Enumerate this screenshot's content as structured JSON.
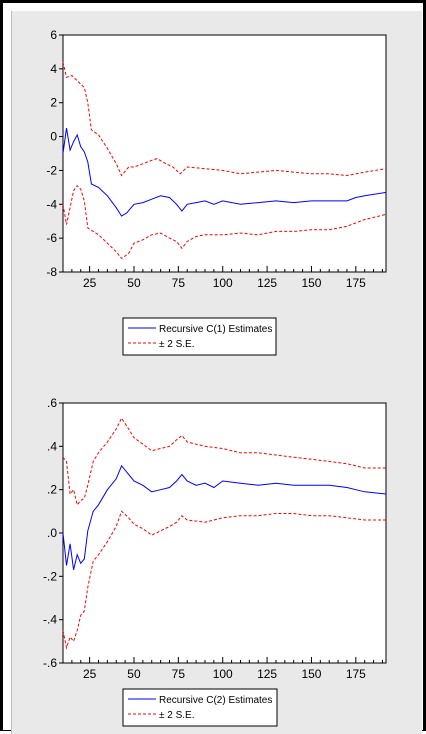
{
  "colors": {
    "estimate": "#0000ff",
    "se_band": "#ff0000",
    "panel_background": "#e9e9e9",
    "plot_background": "#ffffff"
  },
  "chart_data": [
    {
      "type": "line",
      "xlim": [
        10,
        192
      ],
      "ylim": [
        -8,
        6
      ],
      "x_ticks": [
        25,
        50,
        75,
        100,
        125,
        150,
        175
      ],
      "y_ticks": [
        -8,
        -6,
        -4,
        -2,
        0,
        2,
        4,
        6
      ],
      "y_tick_labels": [
        "-8",
        "-6",
        "-4",
        "-2",
        "0",
        "2",
        "4",
        "6"
      ],
      "grid": false,
      "legend_position": "bottom-center",
      "series": [
        {
          "name": "Recursive C(1) Estimates",
          "style": "solid",
          "color": "#0000ff",
          "points": [
            [
              10,
              -1.0
            ],
            [
              12,
              0.5
            ],
            [
              14,
              -0.8
            ],
            [
              16,
              -0.3
            ],
            [
              18,
              0.1
            ],
            [
              20,
              -0.6
            ],
            [
              22,
              -0.9
            ],
            [
              24,
              -1.5
            ],
            [
              26,
              -2.8
            ],
            [
              30,
              -3.0
            ],
            [
              35,
              -3.5
            ],
            [
              40,
              -4.2
            ],
            [
              43,
              -4.7
            ],
            [
              46,
              -4.5
            ],
            [
              50,
              -4.0
            ],
            [
              55,
              -3.9
            ],
            [
              60,
              -3.7
            ],
            [
              65,
              -3.5
            ],
            [
              70,
              -3.6
            ],
            [
              74,
              -4.0
            ],
            [
              77,
              -4.4
            ],
            [
              80,
              -4.0
            ],
            [
              85,
              -3.9
            ],
            [
              90,
              -3.8
            ],
            [
              95,
              -4.0
            ],
            [
              100,
              -3.8
            ],
            [
              110,
              -4.0
            ],
            [
              120,
              -3.9
            ],
            [
              130,
              -3.8
            ],
            [
              140,
              -3.9
            ],
            [
              150,
              -3.8
            ],
            [
              160,
              -3.8
            ],
            [
              170,
              -3.8
            ],
            [
              175,
              -3.6
            ],
            [
              180,
              -3.5
            ],
            [
              192,
              -3.3
            ]
          ]
        },
        {
          "name": "± 2 S.E.",
          "style": "dashed",
          "color": "#ff0000",
          "points": [
            [
              10,
              4.4
            ],
            [
              12,
              3.5
            ],
            [
              15,
              3.6
            ],
            [
              18,
              3.3
            ],
            [
              20,
              3.1
            ],
            [
              22,
              2.9
            ],
            [
              24,
              2.0
            ],
            [
              26,
              0.4
            ],
            [
              30,
              0.1
            ],
            [
              35,
              -0.7
            ],
            [
              40,
              -1.6
            ],
            [
              43,
              -2.3
            ],
            [
              47,
              -1.8
            ],
            [
              50,
              -1.8
            ],
            [
              55,
              -1.6
            ],
            [
              60,
              -1.4
            ],
            [
              63,
              -1.3
            ],
            [
              68,
              -1.6
            ],
            [
              72,
              -1.8
            ],
            [
              76,
              -2.2
            ],
            [
              80,
              -1.8
            ],
            [
              90,
              -1.9
            ],
            [
              100,
              -2.0
            ],
            [
              110,
              -2.2
            ],
            [
              120,
              -2.1
            ],
            [
              130,
              -2.0
            ],
            [
              140,
              -2.1
            ],
            [
              150,
              -2.2
            ],
            [
              160,
              -2.2
            ],
            [
              170,
              -2.3
            ],
            [
              180,
              -2.1
            ],
            [
              192,
              -1.9
            ]
          ]
        },
        {
          "name": "",
          "style": "dashed",
          "color": "#ff0000",
          "points": [
            [
              10,
              -4.0
            ],
            [
              12,
              -5.2
            ],
            [
              14,
              -4.2
            ],
            [
              16,
              -3.2
            ],
            [
              18,
              -2.9
            ],
            [
              20,
              -3.1
            ],
            [
              22,
              -3.8
            ],
            [
              24,
              -5.4
            ],
            [
              27,
              -5.6
            ],
            [
              30,
              -5.8
            ],
            [
              35,
              -6.3
            ],
            [
              40,
              -6.8
            ],
            [
              43,
              -7.2
            ],
            [
              47,
              -6.9
            ],
            [
              50,
              -6.3
            ],
            [
              55,
              -6.1
            ],
            [
              60,
              -5.8
            ],
            [
              65,
              -5.7
            ],
            [
              70,
              -6.0
            ],
            [
              74,
              -6.2
            ],
            [
              77,
              -6.6
            ],
            [
              80,
              -6.2
            ],
            [
              85,
              -5.9
            ],
            [
              90,
              -5.8
            ],
            [
              100,
              -5.8
            ],
            [
              110,
              -5.7
            ],
            [
              120,
              -5.8
            ],
            [
              130,
              -5.6
            ],
            [
              140,
              -5.6
            ],
            [
              150,
              -5.5
            ],
            [
              160,
              -5.5
            ],
            [
              170,
              -5.3
            ],
            [
              180,
              -4.9
            ],
            [
              192,
              -4.6
            ]
          ]
        }
      ]
    },
    {
      "type": "line",
      "xlim": [
        10,
        192
      ],
      "ylim": [
        -0.6,
        0.6
      ],
      "x_ticks": [
        25,
        50,
        75,
        100,
        125,
        150,
        175
      ],
      "y_ticks": [
        -0.6,
        -0.4,
        -0.2,
        0.0,
        0.2,
        0.4,
        0.6
      ],
      "y_tick_labels": [
        "-.6",
        "-.4",
        "-.2",
        ".0",
        ".2",
        ".4",
        ".6"
      ],
      "grid": false,
      "legend_position": "bottom-center",
      "series": [
        {
          "name": "Recursive C(2) Estimates",
          "style": "solid",
          "color": "#0000ff",
          "points": [
            [
              10,
              0.0
            ],
            [
              12,
              -0.15
            ],
            [
              14,
              -0.05
            ],
            [
              16,
              -0.17
            ],
            [
              18,
              -0.1
            ],
            [
              20,
              -0.14
            ],
            [
              22,
              -0.12
            ],
            [
              24,
              0.01
            ],
            [
              27,
              0.1
            ],
            [
              30,
              0.13
            ],
            [
              35,
              0.2
            ],
            [
              40,
              0.25
            ],
            [
              43,
              0.31
            ],
            [
              47,
              0.27
            ],
            [
              50,
              0.24
            ],
            [
              55,
              0.22
            ],
            [
              60,
              0.19
            ],
            [
              65,
              0.2
            ],
            [
              70,
              0.21
            ],
            [
              74,
              0.24
            ],
            [
              77,
              0.27
            ],
            [
              80,
              0.24
            ],
            [
              85,
              0.22
            ],
            [
              90,
              0.23
            ],
            [
              95,
              0.21
            ],
            [
              100,
              0.24
            ],
            [
              110,
              0.23
            ],
            [
              120,
              0.22
            ],
            [
              130,
              0.23
            ],
            [
              140,
              0.22
            ],
            [
              150,
              0.22
            ],
            [
              160,
              0.22
            ],
            [
              170,
              0.21
            ],
            [
              175,
              0.2
            ],
            [
              180,
              0.19
            ],
            [
              192,
              0.18
            ]
          ]
        },
        {
          "name": "± 2 S.E.",
          "style": "dashed",
          "color": "#ff0000",
          "points": [
            [
              10,
              0.35
            ],
            [
              12,
              0.33
            ],
            [
              14,
              0.18
            ],
            [
              16,
              0.2
            ],
            [
              18,
              0.13
            ],
            [
              20,
              0.15
            ],
            [
              22,
              0.16
            ],
            [
              24,
              0.22
            ],
            [
              27,
              0.33
            ],
            [
              30,
              0.37
            ],
            [
              35,
              0.42
            ],
            [
              40,
              0.48
            ],
            [
              43,
              0.53
            ],
            [
              47,
              0.48
            ],
            [
              50,
              0.44
            ],
            [
              55,
              0.41
            ],
            [
              60,
              0.38
            ],
            [
              65,
              0.39
            ],
            [
              70,
              0.4
            ],
            [
              74,
              0.43
            ],
            [
              77,
              0.45
            ],
            [
              80,
              0.42
            ],
            [
              90,
              0.4
            ],
            [
              100,
              0.39
            ],
            [
              110,
              0.37
            ],
            [
              120,
              0.37
            ],
            [
              130,
              0.36
            ],
            [
              140,
              0.35
            ],
            [
              150,
              0.34
            ],
            [
              160,
              0.33
            ],
            [
              170,
              0.32
            ],
            [
              180,
              0.3
            ],
            [
              192,
              0.3
            ]
          ]
        },
        {
          "name": "",
          "style": "dashed",
          "color": "#ff0000",
          "points": [
            [
              10,
              -0.45
            ],
            [
              12,
              -0.53
            ],
            [
              14,
              -0.48
            ],
            [
              16,
              -0.5
            ],
            [
              18,
              -0.45
            ],
            [
              20,
              -0.38
            ],
            [
              22,
              -0.36
            ],
            [
              24,
              -0.25
            ],
            [
              27,
              -0.13
            ],
            [
              30,
              -0.1
            ],
            [
              35,
              -0.04
            ],
            [
              40,
              0.03
            ],
            [
              43,
              0.1
            ],
            [
              47,
              0.07
            ],
            [
              50,
              0.04
            ],
            [
              55,
              0.02
            ],
            [
              60,
              -0.01
            ],
            [
              65,
              0.01
            ],
            [
              70,
              0.03
            ],
            [
              74,
              0.05
            ],
            [
              77,
              0.08
            ],
            [
              80,
              0.06
            ],
            [
              90,
              0.05
            ],
            [
              100,
              0.07
            ],
            [
              110,
              0.08
            ],
            [
              120,
              0.08
            ],
            [
              130,
              0.09
            ],
            [
              140,
              0.09
            ],
            [
              150,
              0.08
            ],
            [
              160,
              0.08
            ],
            [
              170,
              0.07
            ],
            [
              180,
              0.06
            ],
            [
              192,
              0.06
            ]
          ]
        }
      ]
    }
  ]
}
